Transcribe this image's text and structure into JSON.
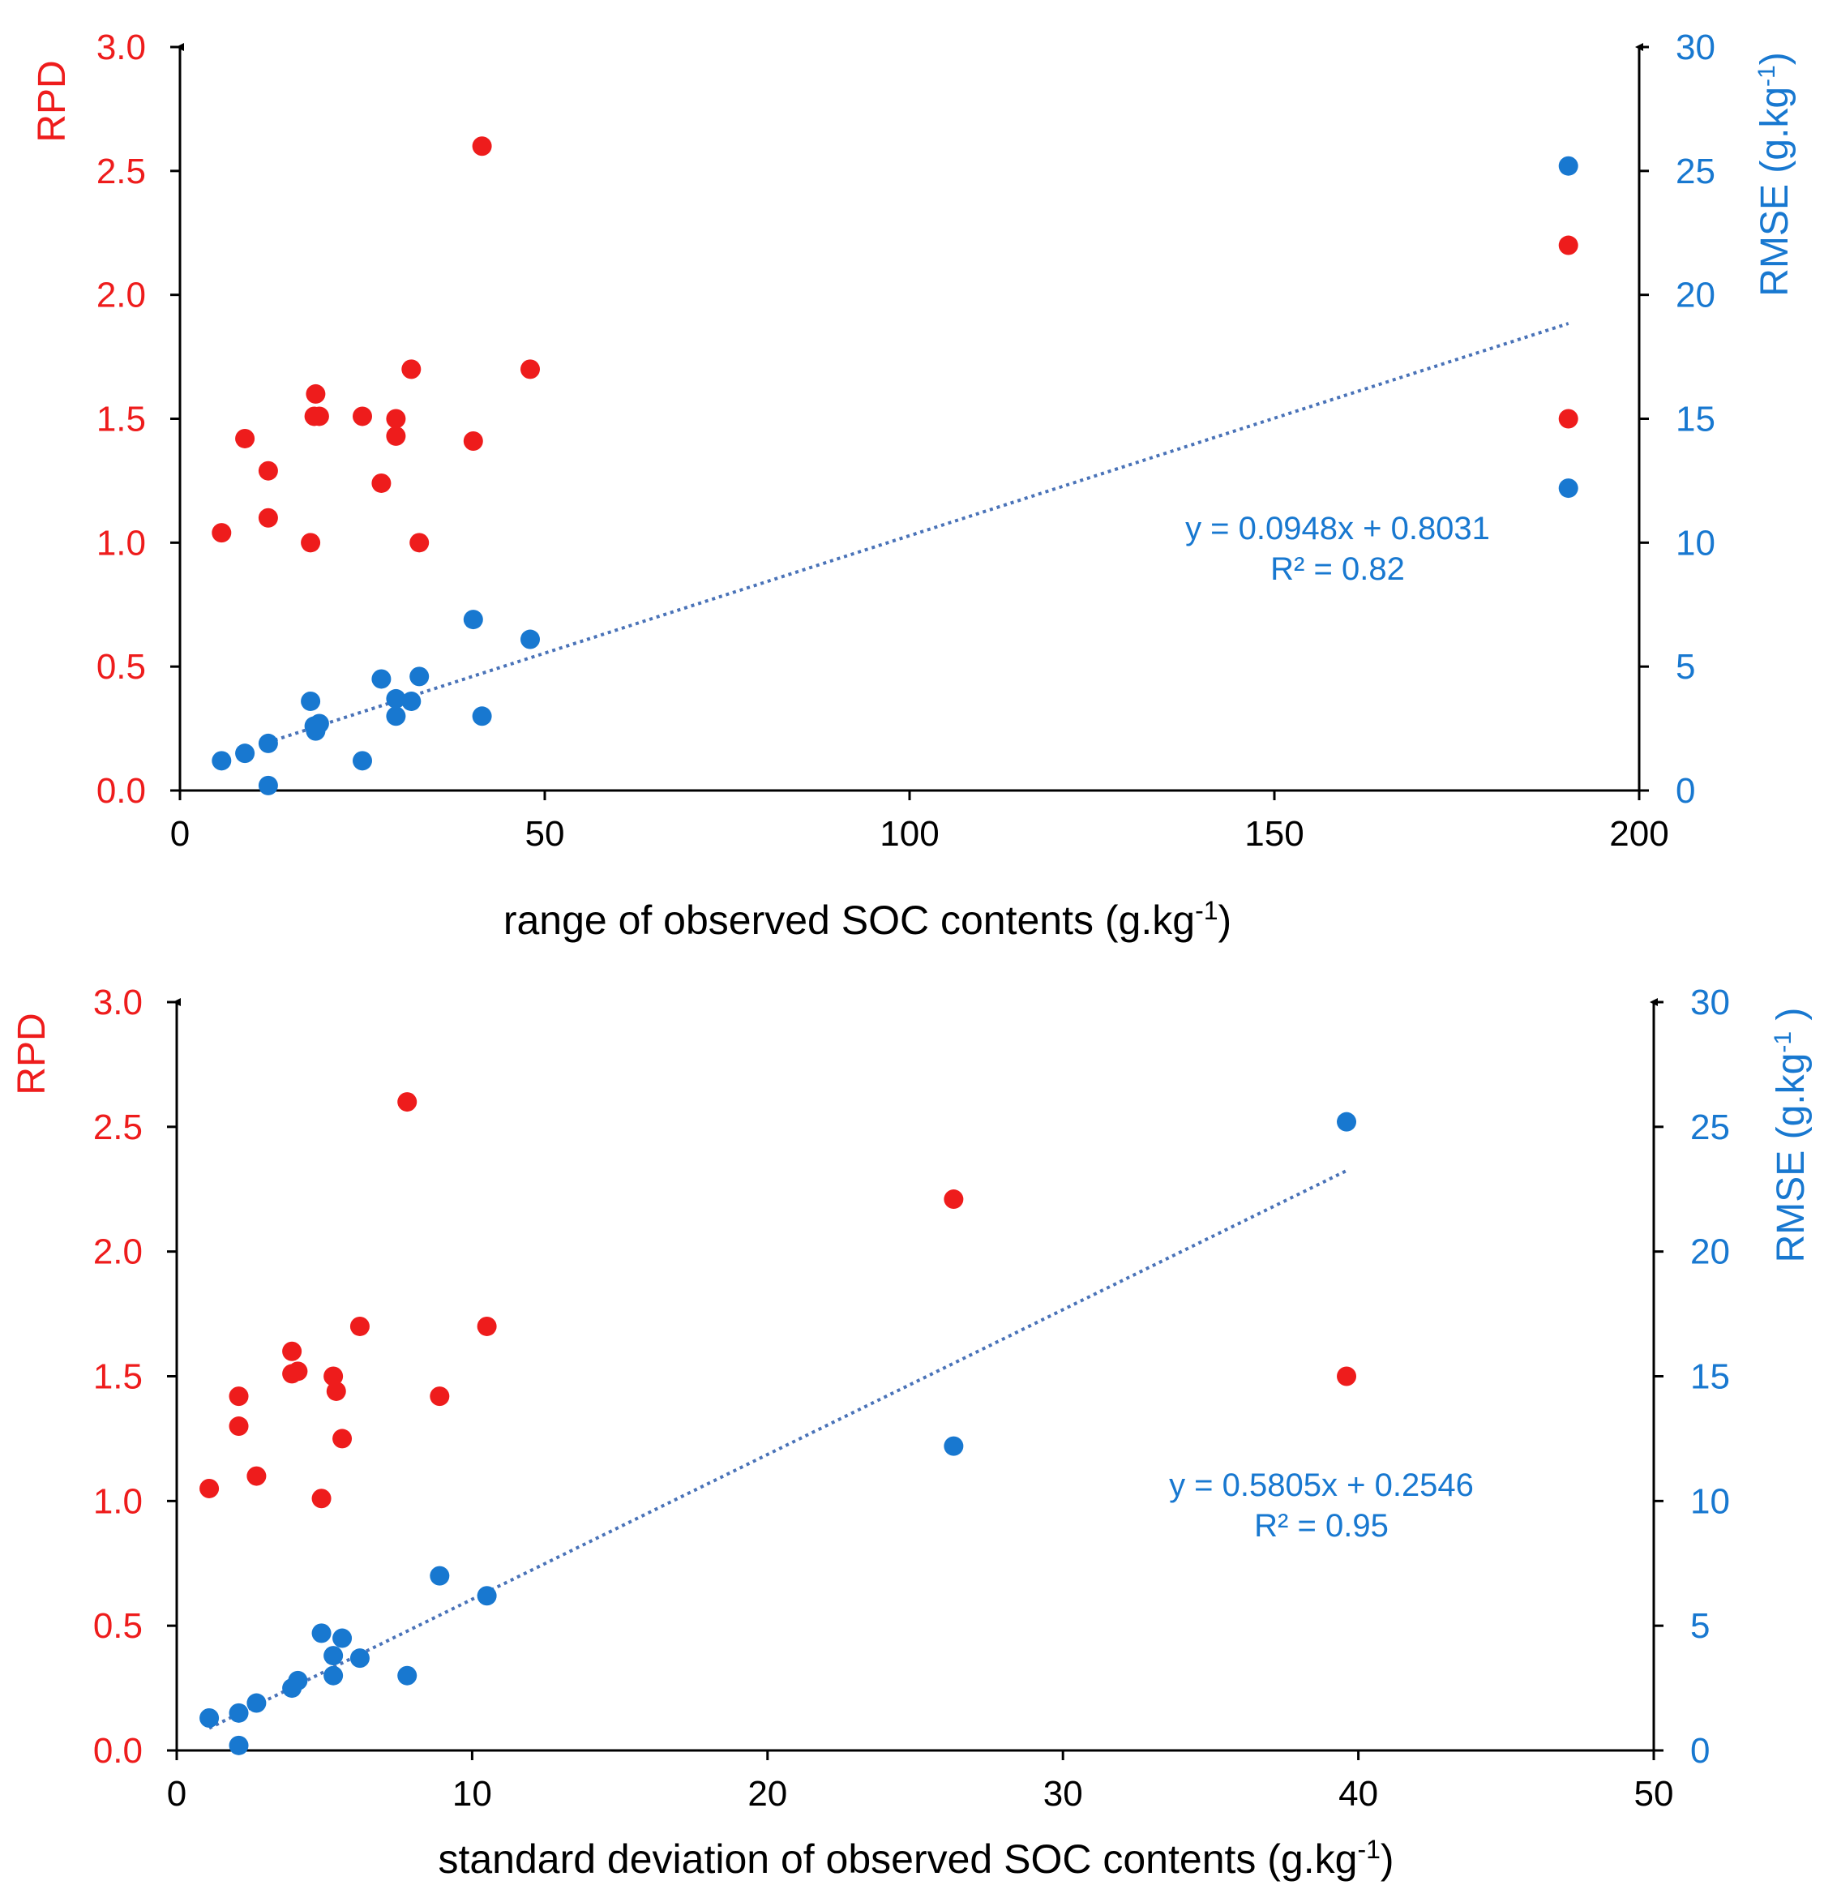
{
  "chart_data": [
    {
      "type": "scatter",
      "xlabel": "range of observed SOC contents (g.kg",
      "xlabel_sup": "-1",
      "xlabel_tail": ")",
      "ylabel_left": "RPD",
      "ylabel_right": "RMSE (g.kg",
      "ylabel_right_sup": "-1",
      "ylabel_right_tail": ")",
      "xlim": [
        0,
        200
      ],
      "ylim_left": [
        0,
        3.0
      ],
      "ylim_right": [
        0,
        30
      ],
      "xticks": [
        "0",
        "50",
        "100",
        "150",
        "200"
      ],
      "yticks_left": [
        "0.0",
        "0.5",
        "1.0",
        "1.5",
        "2.0",
        "2.5",
        "3.0"
      ],
      "yticks_right": [
        "0",
        "5",
        "10",
        "15",
        "20",
        "25",
        "30"
      ],
      "colors": {
        "rpd": "#ee1c1c",
        "rmse": "#1878d0",
        "trend": "#4a73b8"
      },
      "series": [
        {
          "name": "RPD",
          "axis": "left",
          "x": [
            5.7,
            8.9,
            12.1,
            12.1,
            17.9,
            18.4,
            18.6,
            19.1,
            25,
            27.6,
            29.6,
            29.6,
            31.7,
            32.8,
            40.2,
            41.4,
            48,
            190.3,
            190.3
          ],
          "y": [
            1.04,
            1.42,
            1.29,
            1.1,
            1.0,
            1.51,
            1.6,
            1.51,
            1.51,
            1.24,
            1.5,
            1.43,
            1.7,
            1.0,
            1.41,
            2.6,
            1.7,
            2.2,
            1.5
          ]
        },
        {
          "name": "RMSE",
          "axis": "right",
          "x": [
            5.7,
            8.9,
            12.1,
            12.1,
            17.9,
            18.4,
            18.6,
            19.1,
            25,
            27.6,
            29.6,
            29.6,
            31.7,
            32.8,
            40.2,
            41.4,
            48,
            190.3,
            190.3
          ],
          "y": [
            1.2,
            1.5,
            1.9,
            0.2,
            3.6,
            2.6,
            2.4,
            2.7,
            1.2,
            4.5,
            3.7,
            3.0,
            3.6,
            4.6,
            6.9,
            3.0,
            6.1,
            25.2,
            12.2
          ]
        }
      ],
      "trendline": {
        "slope": 0.0948,
        "intercept": 0.8031,
        "x_range": [
          12,
          190.3
        ],
        "axis": "right",
        "equation": "y = 0.0948x + 0.8031",
        "r2": "R² = 0.82"
      }
    },
    {
      "type": "scatter",
      "xlabel": "standard deviation of observed SOC contents (g.kg",
      "xlabel_sup": "-1",
      "xlabel_tail": ")",
      "ylabel_left": "RPD",
      "ylabel_right": "RMSE (g.kg",
      "ylabel_right_sup": "-1",
      "ylabel_right_tail": " )",
      "xlim": [
        0,
        50
      ],
      "ylim_left": [
        0,
        3.0
      ],
      "ylim_right": [
        0,
        30
      ],
      "xticks": [
        "0",
        "10",
        "20",
        "30",
        "40",
        "50"
      ],
      "yticks_left": [
        "0.0",
        "0.5",
        "1.0",
        "1.5",
        "2.0",
        "2.5",
        "3.0"
      ],
      "yticks_right": [
        "0",
        "5",
        "10",
        "15",
        "20",
        "25",
        "30"
      ],
      "colors": {
        "rpd": "#ee1c1c",
        "rmse": "#1878d0",
        "trend": "#4a73b8"
      },
      "series": [
        {
          "name": "RPD",
          "axis": "left",
          "x": [
            1.1,
            2.1,
            2.1,
            2.7,
            3.9,
            3.9,
            4.1,
            4.9,
            5.3,
            5.4,
            5.6,
            6.2,
            7.8,
            8.9,
            10.5,
            26.3,
            39.6
          ],
          "y": [
            1.05,
            1.42,
            1.3,
            1.1,
            1.6,
            1.51,
            1.52,
            1.01,
            1.5,
            1.44,
            1.25,
            1.7,
            2.6,
            1.42,
            1.7,
            2.21,
            1.5
          ]
        },
        {
          "name": "RMSE",
          "axis": "right",
          "x": [
            1.1,
            2.1,
            2.1,
            2.7,
            3.9,
            4.1,
            4.9,
            5.3,
            5.3,
            5.6,
            6.2,
            7.8,
            8.9,
            10.5,
            26.3,
            39.6
          ],
          "y": [
            1.3,
            1.5,
            0.2,
            1.9,
            2.5,
            2.8,
            4.7,
            3.0,
            3.8,
            4.5,
            3.7,
            3.0,
            7.0,
            6.2,
            12.2,
            25.2
          ]
        }
      ],
      "trendline": {
        "slope": 0.5805,
        "intercept": 0.2546,
        "x_range": [
          1.1,
          39.6
        ],
        "axis": "right",
        "equation": "y = 0.5805x + 0.2546",
        "r2": "R² = 0.95"
      }
    }
  ]
}
